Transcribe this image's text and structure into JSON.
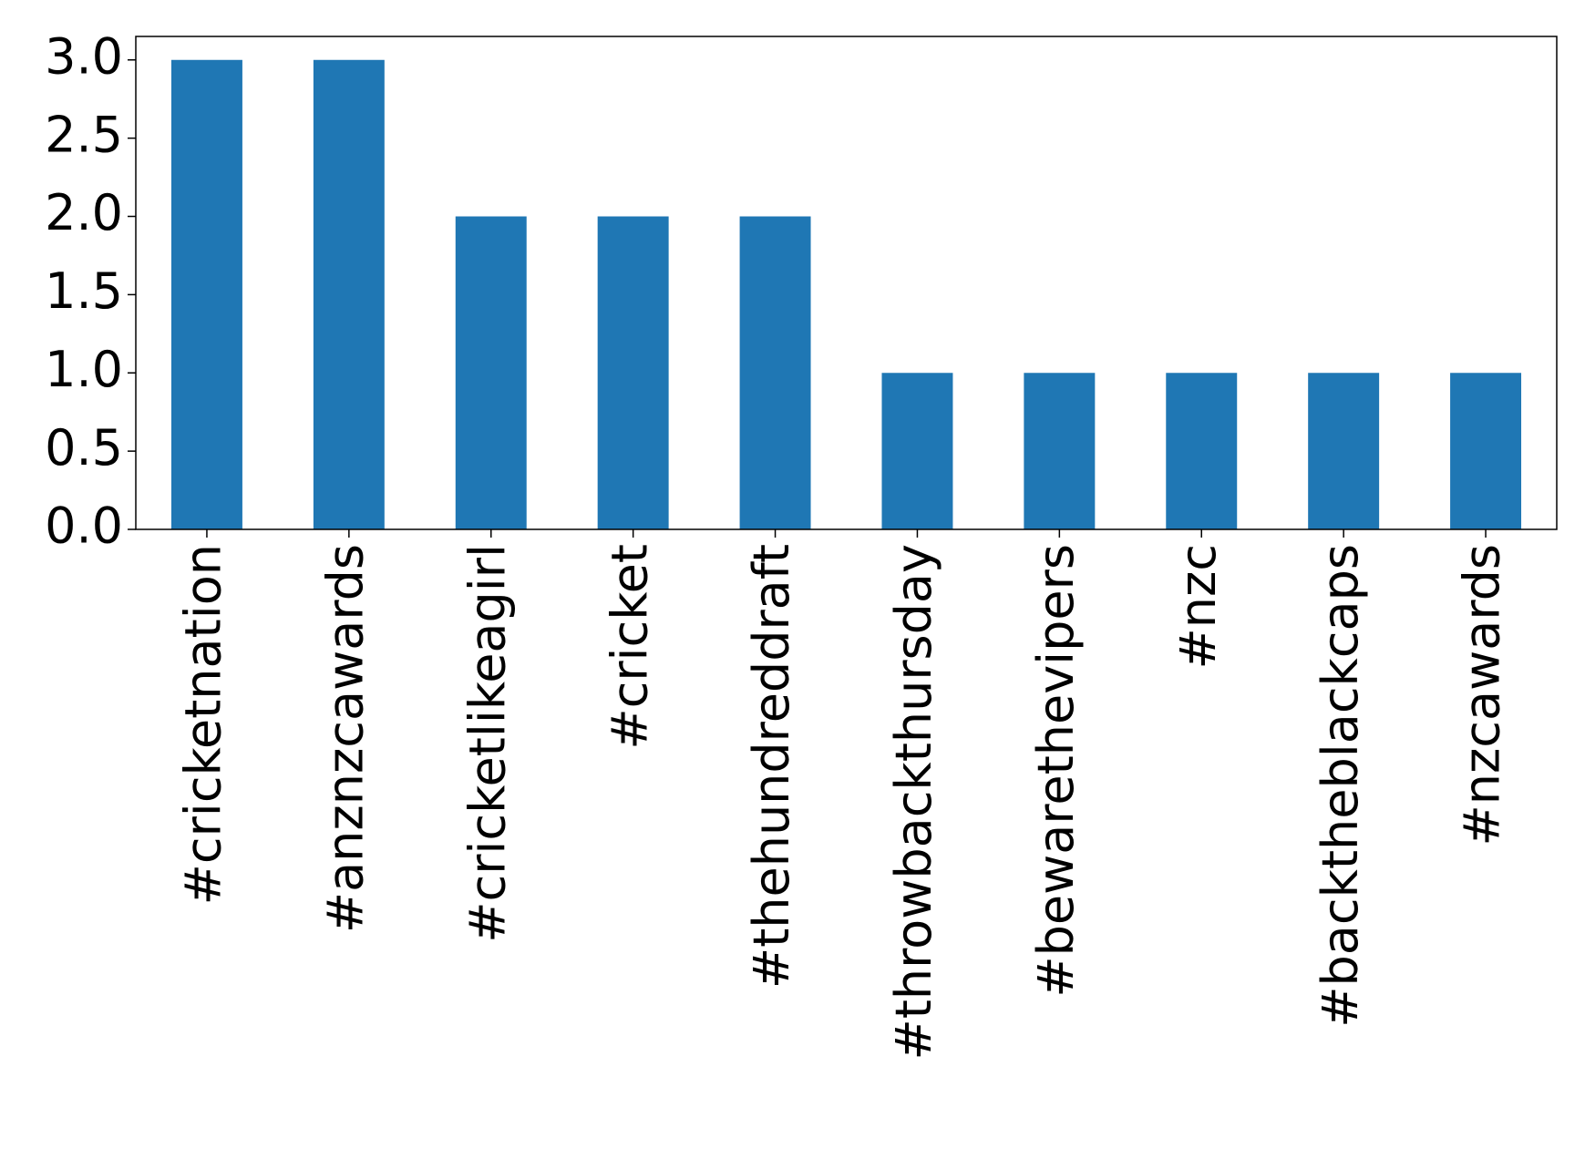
{
  "chart_data": {
    "type": "bar",
    "categories": [
      "#cricketnation",
      "#anznzcawards",
      "#cricketlikeagirl",
      "#cricket",
      "#thehundreddraft",
      "#throwbackthursday",
      "#bewarethevipers",
      "#nzc",
      "#backtheblackcaps",
      "#nzcawards"
    ],
    "values": [
      3,
      3,
      2,
      2,
      2,
      1,
      1,
      1,
      1,
      1
    ],
    "color": "#1f77b4",
    "ylim": [
      0,
      3.15
    ],
    "yticks": [
      {
        "value": 0,
        "label": "0.0"
      },
      {
        "value": 0.5,
        "label": "0.5"
      },
      {
        "value": 1,
        "label": "1.0"
      },
      {
        "value": 1.5,
        "label": "1.5"
      },
      {
        "value": 2,
        "label": "2.0"
      },
      {
        "value": 2.5,
        "label": "2.5"
      },
      {
        "value": 3,
        "label": "3.0"
      }
    ],
    "grid": false
  }
}
